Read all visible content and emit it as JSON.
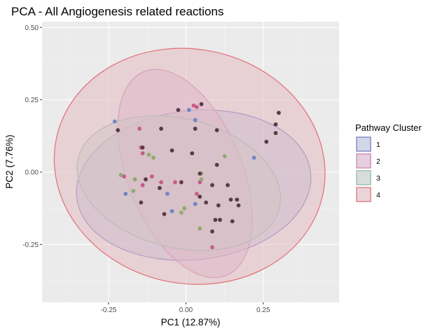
{
  "chart_data": {
    "type": "scatter",
    "title": "PCA - All Angiogenesis related reactions",
    "xlabel": "PC1 (12.87%)",
    "ylabel": "PC2 (7.76%)",
    "xlim": [
      -0.465,
      0.495
    ],
    "ylim": [
      -0.45,
      0.52
    ],
    "x_ticks": [
      -0.25,
      0.0,
      0.25
    ],
    "x_tick_labels": [
      "-0.25",
      "0.00",
      "0.25"
    ],
    "y_ticks": [
      -0.25,
      0.0,
      0.25,
      0.5
    ],
    "y_tick_labels": [
      "-0.25",
      "0.00",
      "0.25",
      "0.50"
    ],
    "grid": true,
    "legend": {
      "title": "Pathway Cluster",
      "placement": "right",
      "entries": [
        "1",
        "2",
        "3",
        "4"
      ]
    },
    "colors": {
      "panel_background": "#ebebeb",
      "grid_major": "#ffffff",
      "grid_minor": "#f5f5f5"
    },
    "series": [
      {
        "name": "1",
        "point_color": "#6f86c7",
        "ellipse_fill": "#b8bfdf",
        "ellipse_stroke": "#7877c0",
        "ellipse": {
          "cx": 0.025,
          "cy": -0.045,
          "rx": 0.38,
          "ry": 0.258,
          "angle": -6
        },
        "points": [
          {
            "x": -0.23,
            "y": 0.175
          },
          {
            "x": 0.01,
            "y": 0.215
          },
          {
            "x": 0.03,
            "y": 0.18
          },
          {
            "x": 0.22,
            "y": 0.05
          },
          {
            "x": -0.195,
            "y": -0.075
          },
          {
            "x": -0.06,
            "y": -0.075
          },
          {
            "x": 0.03,
            "y": -0.11
          },
          {
            "x": -0.045,
            "y": -0.135
          }
        ]
      },
      {
        "name": "2",
        "point_color": "#c55c8a",
        "ellipse_fill": "#dcb2cd",
        "ellipse_stroke": "#cd82b6",
        "ellipse": {
          "cx": -0.003,
          "cy": -0.005,
          "rx": 0.185,
          "ry": 0.38,
          "angle": -22
        },
        "points": [
          {
            "x": 0.025,
            "y": 0.23
          },
          {
            "x": 0.035,
            "y": 0.225
          },
          {
            "x": -0.15,
            "y": 0.15
          },
          {
            "x": -0.145,
            "y": 0.085
          },
          {
            "x": -0.14,
            "y": 0.065
          },
          {
            "x": -0.2,
            "y": -0.015
          },
          {
            "x": -0.11,
            "y": -0.015
          },
          {
            "x": -0.08,
            "y": -0.035
          },
          {
            "x": -0.14,
            "y": -0.045
          },
          {
            "x": -0.035,
            "y": -0.035
          },
          {
            "x": 0.045,
            "y": -0.035
          },
          {
            "x": 0.035,
            "y": -0.075
          },
          {
            "x": 0.085,
            "y": -0.26
          }
        ]
      },
      {
        "name": "3",
        "point_color": "#8fab70",
        "ellipse_fill": "#bfcdca",
        "ellipse_stroke": "#8fbaa8",
        "ellipse": {
          "cx": -0.023,
          "cy": -0.038,
          "rx": 0.335,
          "ry": 0.223,
          "angle": 14
        },
        "points": [
          {
            "x": -0.12,
            "y": 0.06
          },
          {
            "x": -0.105,
            "y": 0.05
          },
          {
            "x": 0.125,
            "y": 0.055
          },
          {
            "x": -0.21,
            "y": -0.01
          },
          {
            "x": -0.165,
            "y": -0.025
          },
          {
            "x": -0.17,
            "y": -0.065
          },
          {
            "x": 0.05,
            "y": -0.005
          },
          {
            "x": 0.05,
            "y": -0.025
          },
          {
            "x": -0.005,
            "y": -0.125
          },
          {
            "x": -0.015,
            "y": -0.14
          },
          {
            "x": 0.045,
            "y": -0.195
          }
        ]
      },
      {
        "name": "4",
        "point_color": "#5c3a47",
        "ellipse_fill": "#e4bcc1",
        "ellipse_stroke": "#e36d78",
        "ellipse": {
          "cx": 0.012,
          "cy": 0.02,
          "rx": 0.44,
          "ry": 0.405,
          "angle": 12
        },
        "points": [
          {
            "x": -0.025,
            "y": 0.215
          },
          {
            "x": 0.05,
            "y": 0.235
          },
          {
            "x": 0.03,
            "y": 0.15
          },
          {
            "x": -0.08,
            "y": 0.15
          },
          {
            "x": 0.1,
            "y": 0.145
          },
          {
            "x": 0.3,
            "y": 0.205
          },
          {
            "x": 0.29,
            "y": 0.165
          },
          {
            "x": 0.29,
            "y": 0.135
          },
          {
            "x": 0.26,
            "y": 0.105
          },
          {
            "x": -0.22,
            "y": 0.145
          },
          {
            "x": -0.14,
            "y": 0.085
          },
          {
            "x": -0.045,
            "y": 0.075
          },
          {
            "x": 0.02,
            "y": 0.065
          },
          {
            "x": 0.1,
            "y": 0.025
          },
          {
            "x": 0.085,
            "y": -0.045
          },
          {
            "x": 0.135,
            "y": -0.045
          },
          {
            "x": -0.13,
            "y": -0.025
          },
          {
            "x": -0.085,
            "y": -0.055
          },
          {
            "x": -0.015,
            "y": -0.035
          },
          {
            "x": 0.045,
            "y": -0.005
          },
          {
            "x": -0.145,
            "y": -0.105
          },
          {
            "x": 0.045,
            "y": -0.085
          },
          {
            "x": 0.065,
            "y": -0.105
          },
          {
            "x": 0.145,
            "y": -0.095
          },
          {
            "x": 0.105,
            "y": -0.115
          },
          {
            "x": 0.165,
            "y": -0.095
          },
          {
            "x": 0.17,
            "y": -0.115
          },
          {
            "x": -0.07,
            "y": -0.145
          },
          {
            "x": 0.11,
            "y": -0.165
          },
          {
            "x": 0.095,
            "y": -0.165
          },
          {
            "x": 0.15,
            "y": -0.17
          },
          {
            "x": 0.085,
            "y": -0.205
          }
        ]
      }
    ]
  }
}
